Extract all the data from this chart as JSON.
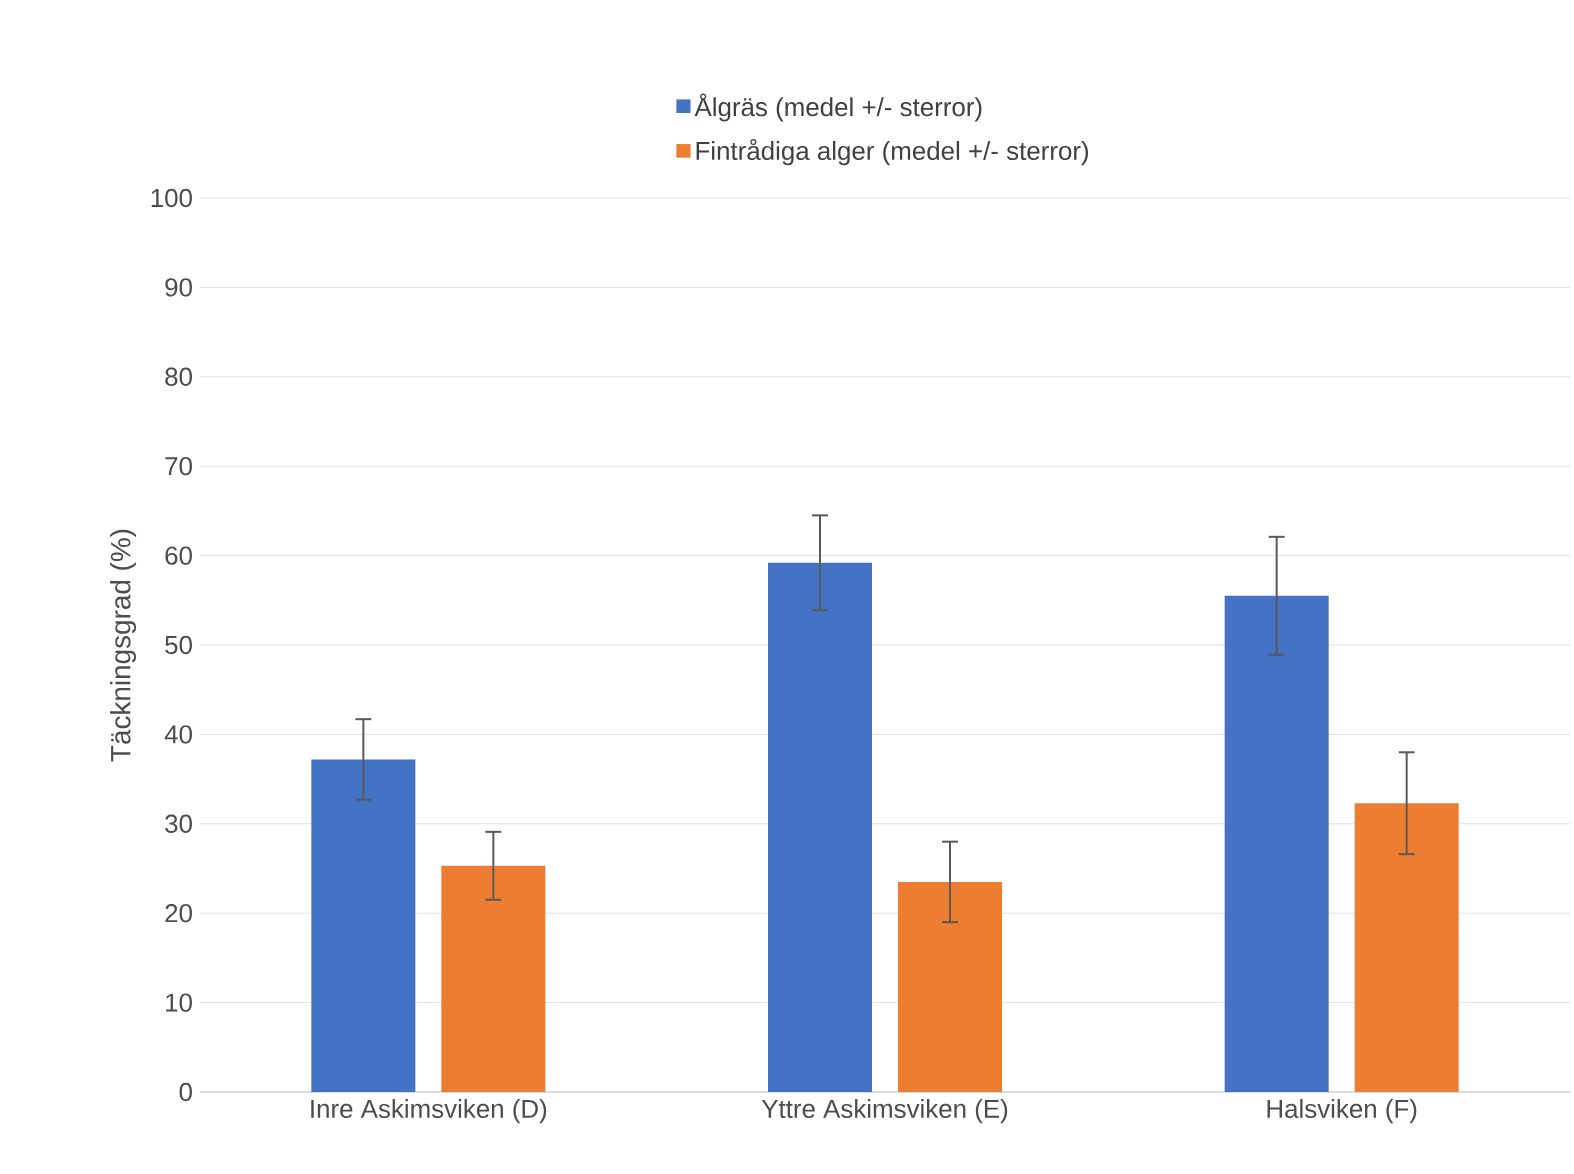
{
  "chart_data": {
    "type": "bar",
    "ylabel": "Täckningsgrad (%)",
    "categories": [
      "Inre Askimsviken (D)",
      "Yttre Askimsviken (E)",
      "Halsviken (F)"
    ],
    "series": [
      {
        "name": "Ålgräs (medel +/- sterror)",
        "color": "#4472c4",
        "values": [
          37.2,
          59.2,
          55.5
        ],
        "errors": [
          4.5,
          5.3,
          6.6
        ]
      },
      {
        "name": "Fintrådiga alger (medel +/- sterror)",
        "color": "#ed7d31",
        "values": [
          25.3,
          23.5,
          32.3
        ],
        "errors": [
          3.8,
          4.5,
          5.7
        ]
      }
    ],
    "ylim": [
      0,
      100
    ],
    "yticks": [
      0,
      10,
      20,
      30,
      40,
      50,
      60,
      70,
      80,
      90,
      100
    ],
    "grid": "y",
    "legend": "top"
  }
}
